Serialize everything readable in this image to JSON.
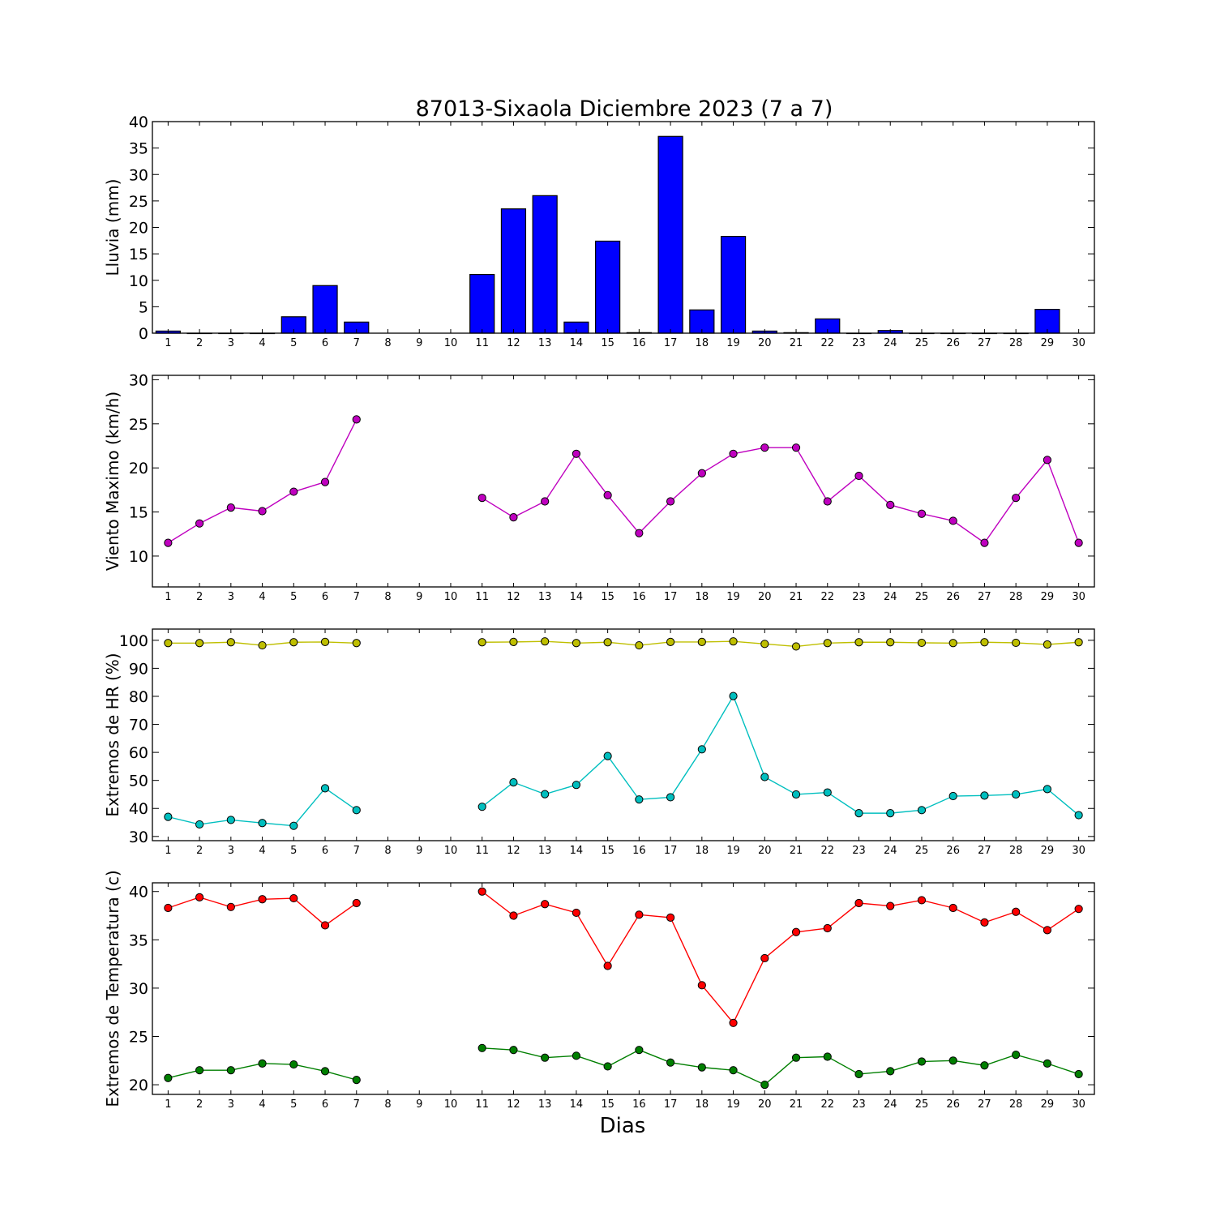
{
  "figure": {
    "title": "87013-Sixaola Diciembre 2023  (7 a 7)",
    "xlabel": "Dias"
  },
  "chart_data": [
    {
      "type": "bar",
      "ylabel": "Lluvia (mm)",
      "categories": [
        1,
        2,
        3,
        4,
        5,
        6,
        7,
        8,
        9,
        10,
        11,
        12,
        13,
        14,
        15,
        16,
        17,
        18,
        19,
        20,
        21,
        22,
        23,
        24,
        25,
        26,
        27,
        28,
        29,
        30
      ],
      "values": [
        0.4,
        0,
        0,
        0,
        3.1,
        9.0,
        2.1,
        null,
        null,
        null,
        11.1,
        23.5,
        26.0,
        2.1,
        17.4,
        0.1,
        37.2,
        4.4,
        18.3,
        0.4,
        0.1,
        2.7,
        0,
        0.5,
        0,
        0,
        0,
        0,
        4.5,
        null
      ],
      "ylim": [
        0,
        40
      ],
      "yticks": [
        0,
        5,
        10,
        15,
        20,
        25,
        30,
        35,
        40
      ],
      "color": "#0000ff"
    },
    {
      "type": "line",
      "ylabel": "Viento Maximo (km/h)",
      "x": [
        1,
        2,
        3,
        4,
        5,
        6,
        7,
        8,
        9,
        10,
        11,
        12,
        13,
        14,
        15,
        16,
        17,
        18,
        19,
        20,
        21,
        22,
        23,
        24,
        25,
        26,
        27,
        28,
        29,
        30
      ],
      "series": [
        {
          "color": "#bf00bf",
          "values": [
            11.5,
            13.7,
            15.5,
            15.1,
            17.3,
            18.4,
            25.5,
            null,
            null,
            null,
            16.6,
            14.4,
            16.2,
            21.6,
            16.9,
            12.6,
            16.2,
            19.4,
            21.6,
            22.3,
            22.3,
            16.2,
            19.1,
            15.8,
            14.8,
            14.0,
            11.5,
            16.6,
            20.9,
            11.5
          ]
        }
      ],
      "ylim": [
        6.5,
        30.5
      ],
      "yticks": [
        10,
        15,
        20,
        25,
        30
      ]
    },
    {
      "type": "line",
      "ylabel": "Extremos de HR (%)",
      "x": [
        1,
        2,
        3,
        4,
        5,
        6,
        7,
        8,
        9,
        10,
        11,
        12,
        13,
        14,
        15,
        16,
        17,
        18,
        19,
        20,
        21,
        22,
        23,
        24,
        25,
        26,
        27,
        28,
        29,
        30
      ],
      "series": [
        {
          "color": "#bfbf00",
          "values": [
            99,
            99,
            99.3,
            98.2,
            99.3,
            99.4,
            99,
            null,
            null,
            null,
            99.3,
            99.4,
            99.6,
            99,
            99.3,
            98.2,
            99.4,
            99.4,
            99.6,
            98.7,
            97.8,
            99,
            99.3,
            99.3,
            99.1,
            99,
            99.3,
            99.1,
            98.5,
            99.3
          ]
        },
        {
          "color": "#00bfbf",
          "values": [
            37,
            34.3,
            35.9,
            34.8,
            33.8,
            47.2,
            39.4,
            null,
            null,
            null,
            40.6,
            49.3,
            45.1,
            48.4,
            58.7,
            43.2,
            44,
            61.1,
            80.1,
            51.2,
            45,
            45.7,
            38.3,
            38.3,
            39.4,
            44.4,
            44.6,
            45,
            46.9,
            37.6
          ]
        }
      ],
      "ylim": [
        28.5,
        104
      ],
      "yticks": [
        30,
        40,
        50,
        60,
        70,
        80,
        90,
        100
      ]
    },
    {
      "type": "line",
      "ylabel": "Extremos de Temperatura (c)",
      "x": [
        1,
        2,
        3,
        4,
        5,
        6,
        7,
        8,
        9,
        10,
        11,
        12,
        13,
        14,
        15,
        16,
        17,
        18,
        19,
        20,
        21,
        22,
        23,
        24,
        25,
        26,
        27,
        28,
        29,
        30
      ],
      "series": [
        {
          "color": "#ff0000",
          "values": [
            38.3,
            39.4,
            38.4,
            39.2,
            39.3,
            36.5,
            38.8,
            null,
            null,
            null,
            40.0,
            37.5,
            38.7,
            37.8,
            32.3,
            37.6,
            37.3,
            30.3,
            26.4,
            33.1,
            35.8,
            36.2,
            38.8,
            38.5,
            39.1,
            38.3,
            36.8,
            37.9,
            36.0,
            38.2
          ]
        },
        {
          "color": "#007f00",
          "values": [
            20.7,
            21.5,
            21.5,
            22.2,
            22.1,
            21.4,
            20.5,
            null,
            null,
            null,
            23.8,
            23.6,
            22.8,
            23.0,
            21.9,
            23.6,
            22.3,
            21.8,
            21.5,
            20.0,
            22.8,
            22.9,
            21.1,
            21.4,
            22.4,
            22.5,
            22.0,
            23.1,
            22.2,
            21.1
          ]
        }
      ],
      "ylim": [
        19.0,
        40.9
      ],
      "yticks": [
        20,
        25,
        30,
        35,
        40
      ]
    }
  ]
}
